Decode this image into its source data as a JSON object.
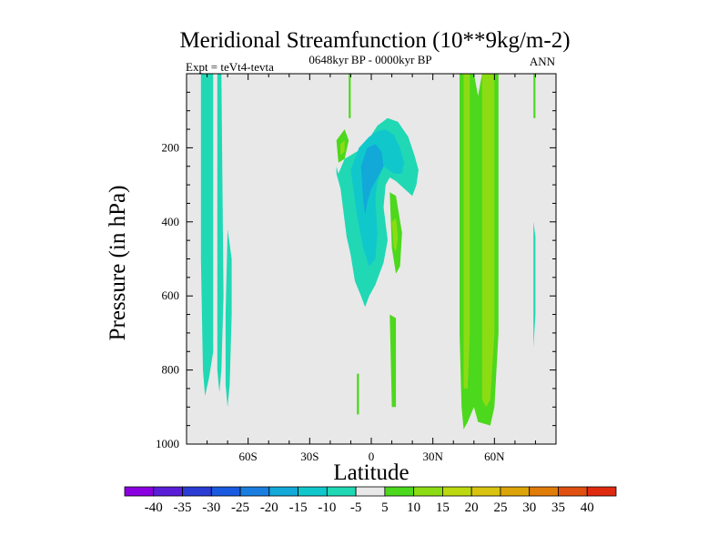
{
  "chart_data": {
    "type": "heatmap",
    "title": "Meridional Streamfunction (10**9kg/m-2)",
    "subtitle_left": "Expt = teVt4-tevta",
    "subtitle_center": "0648kyr BP - 0000kyr BP",
    "subtitle_right": "ANN",
    "xlabel": "Latitude",
    "ylabel": "Pressure (in hPa)",
    "xlim": [
      -90,
      90
    ],
    "ylim": [
      1000,
      0
    ],
    "x_ticks": [
      {
        "value": -60,
        "label": "60S"
      },
      {
        "value": -30,
        "label": "30S"
      },
      {
        "value": 0,
        "label": "0"
      },
      {
        "value": 30,
        "label": "30N"
      },
      {
        "value": 60,
        "label": "60N"
      }
    ],
    "y_ticks": [
      {
        "value": 200,
        "label": "200"
      },
      {
        "value": 400,
        "label": "400"
      },
      {
        "value": 600,
        "label": "600"
      },
      {
        "value": 800,
        "label": "800"
      },
      {
        "value": 1000,
        "label": "1000"
      }
    ],
    "background_color": "#e8e8e8",
    "colorbar": {
      "levels": [
        "-40",
        "-35",
        "-30",
        "-25",
        "-20",
        "-15",
        "-10",
        "-5",
        "5",
        "10",
        "15",
        "20",
        "25",
        "30",
        "35",
        "40"
      ],
      "colors": [
        "#8a00e0",
        "#5a1ed8",
        "#2a3cd4",
        "#1a5ae0",
        "#1a7ee0",
        "#12a8d8",
        "#10c8cc",
        "#20d8b4",
        "#e8e8e8",
        "#4cd81c",
        "#8cdc14",
        "#bcd810",
        "#d8c410",
        "#dca408",
        "#e07c08",
        "#e05010",
        "#e02a10"
      ]
    },
    "regions": [
      {
        "name": "cyan-band-1",
        "value": -5,
        "color": "#20d8b4",
        "x": [
          -83,
          -77,
          -77,
          -79,
          -81,
          -82,
          -83
        ],
        "y": [
          0,
          0,
          750,
          820,
          870,
          800,
          500
        ]
      },
      {
        "name": "cyan-band-2",
        "value": -5,
        "color": "#20d8b4",
        "x": [
          -75,
          -73,
          -72,
          -73,
          -74,
          -75,
          -75
        ],
        "y": [
          0,
          0,
          600,
          800,
          860,
          800,
          400
        ]
      },
      {
        "name": "cyan-band-3",
        "value": -5,
        "color": "#20d8b4",
        "x": [
          -70,
          -68,
          -68,
          -69,
          -70,
          -71,
          -71
        ],
        "y": [
          420,
          500,
          650,
          840,
          900,
          840,
          650
        ]
      },
      {
        "name": "cyan-sliver-right",
        "value": -5,
        "color": "#20d8b4",
        "x": [
          79,
          80,
          80,
          79,
          79
        ],
        "y": [
          400,
          440,
          650,
          740,
          500
        ]
      },
      {
        "name": "cyan-tropical-blob",
        "value": -5,
        "color": "#20d8b4",
        "x": [
          -16,
          -13,
          -4,
          3,
          8,
          13,
          18,
          21,
          23,
          22,
          20,
          16,
          12,
          9,
          7,
          6,
          8,
          6,
          4,
          2,
          -1,
          -3,
          -5,
          -8,
          -10,
          -12,
          -15,
          -17,
          -17,
          -16
        ],
        "y": [
          270,
          230,
          200,
          140,
          120,
          130,
          170,
          220,
          260,
          300,
          330,
          310,
          290,
          280,
          300,
          360,
          450,
          510,
          540,
          570,
          600,
          630,
          600,
          560,
          490,
          440,
          310,
          270,
          250,
          270
        ]
      },
      {
        "name": "mid-blue-core",
        "value": -10,
        "color": "#10c8cc",
        "x": [
          -10,
          -6,
          -1,
          3,
          7,
          11,
          14,
          16,
          15,
          11,
          6,
          3,
          2,
          3,
          2,
          -1,
          -4,
          -7,
          -10
        ],
        "y": [
          260,
          200,
          170,
          155,
          150,
          165,
          200,
          240,
          270,
          270,
          250,
          290,
          340,
          430,
          500,
          520,
          470,
          380,
          260
        ]
      },
      {
        "name": "dark-blue-core",
        "value": -15,
        "color": "#12a8d8",
        "x": [
          -5,
          -2,
          2,
          5,
          6,
          3,
          0,
          -2,
          -3,
          -4,
          -5
        ],
        "y": [
          250,
          200,
          190,
          210,
          250,
          280,
          310,
          350,
          380,
          340,
          250
        ]
      },
      {
        "name": "green-small-nw",
        "value": 5,
        "color": "#4cd81c",
        "x": [
          -17,
          -13,
          -11,
          -13,
          -16,
          -17
        ],
        "y": [
          180,
          150,
          180,
          230,
          240,
          180
        ]
      },
      {
        "name": "lime-small-nw",
        "value": 10,
        "color": "#8cdc14",
        "x": [
          -15,
          -13,
          -13,
          -15,
          -15
        ],
        "y": [
          190,
          180,
          210,
          220,
          190
        ]
      },
      {
        "name": "green-top-strip",
        "value": 5,
        "color": "#4cd81c",
        "x": [
          -11,
          -10,
          -10,
          -11
        ],
        "y": [
          0,
          0,
          120,
          120
        ]
      },
      {
        "name": "green-mid-strip",
        "value": 5,
        "color": "#4cd81c",
        "x": [
          9,
          12,
          15,
          14,
          12,
          10,
          9
        ],
        "y": [
          320,
          330,
          430,
          520,
          540,
          470,
          320
        ]
      },
      {
        "name": "lime-mid-strip",
        "value": 10,
        "color": "#8cdc14",
        "x": [
          10,
          12,
          13,
          12,
          11,
          10
        ],
        "y": [
          400,
          390,
          440,
          480,
          470,
          400
        ]
      },
      {
        "name": "green-low-strip",
        "value": 5,
        "color": "#4cd81c",
        "x": [
          9,
          12,
          12,
          10,
          9
        ],
        "y": [
          650,
          660,
          900,
          900,
          650
        ]
      },
      {
        "name": "green-low-sliver",
        "value": 5,
        "color": "#4cd81c",
        "x": [
          -7,
          -6,
          -6,
          -7
        ],
        "y": [
          810,
          810,
          920,
          920
        ]
      },
      {
        "name": "green-nh-band",
        "value": 5,
        "color": "#4cd81c",
        "x": [
          43,
          50,
          52,
          54,
          62,
          62,
          60,
          58,
          52,
          50,
          47,
          45,
          44,
          43
        ],
        "y": [
          0,
          0,
          60,
          0,
          0,
          700,
          900,
          950,
          940,
          900,
          940,
          960,
          900,
          700
        ]
      },
      {
        "name": "lime-nh-band",
        "value": 10,
        "color": "#8cdc14",
        "x": [
          45,
          48,
          48,
          47,
          45,
          45
        ],
        "y": [
          0,
          0,
          700,
          850,
          850,
          700
        ]
      },
      {
        "name": "lime-nh-band-2",
        "value": 10,
        "color": "#8cdc14",
        "x": [
          54,
          60,
          60,
          58,
          56,
          54,
          54
        ],
        "y": [
          0,
          0,
          700,
          880,
          900,
          880,
          700
        ]
      },
      {
        "name": "green-sliver-right",
        "value": 5,
        "color": "#4cd81c",
        "x": [
          79,
          80,
          80,
          79
        ],
        "y": [
          0,
          0,
          120,
          120
        ]
      }
    ]
  }
}
